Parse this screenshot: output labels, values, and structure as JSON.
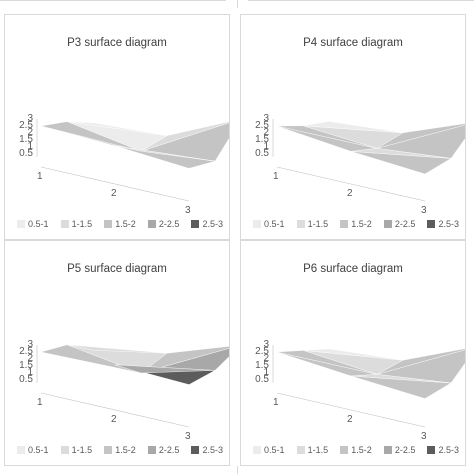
{
  "chart_data": [
    {
      "type": "surface",
      "title": "P3 surface diagram",
      "y_ticks": [
        "0.5",
        "1",
        "1.5",
        "2",
        "2.5",
        "3"
      ],
      "x_ticks": [
        "1",
        "2",
        "3"
      ],
      "legend": [
        "0.5-1",
        "1-1.5",
        "1.5-2",
        "2-2.5",
        "2.5-3"
      ],
      "legend_colors": [
        "#ececec",
        "#dcdcdc",
        "#c4c4c4",
        "#a8a8a8",
        "#5c5c5c"
      ],
      "grid": [
        [
          2.5,
          2.3,
          1.9
        ],
        [
          1.6,
          0.7,
          1.2
        ],
        [
          0.3,
          0.6,
          3.0
        ]
      ]
    },
    {
      "type": "surface",
      "title": "P4 surface diagram",
      "y_ticks": [
        "0.5",
        "1",
        "1.5",
        "2",
        "2.5",
        "3"
      ],
      "x_ticks": [
        "1",
        "2",
        "3"
      ],
      "legend": [
        "0.5-1",
        "1-1.5",
        "1.5-2",
        "2-2.5",
        "2.5-3"
      ],
      "legend_colors": [
        "#ececec",
        "#dcdcdc",
        "#c4c4c4",
        "#a8a8a8",
        "#5c5c5c"
      ],
      "grid": [
        [
          2.5,
          1.9,
          1.5
        ],
        [
          1.3,
          0.9,
          1.4
        ],
        [
          0.4,
          0.8,
          2.8
        ]
      ]
    },
    {
      "type": "surface",
      "title": "P5 surface diagram",
      "y_ticks": [
        "0.5",
        "1",
        "1.5",
        "2",
        "2.5",
        "3"
      ],
      "x_ticks": [
        "1",
        "2",
        "3"
      ],
      "legend": [
        "0.5-1",
        "1-1.5",
        "1.5-2",
        "2-2.5",
        "2.5-3"
      ],
      "legend_colors": [
        "#ececec",
        "#dcdcdc",
        "#c4c4c4",
        "#a8a8a8",
        "#5c5c5c"
      ],
      "grid": [
        [
          2.5,
          2.8,
          2.6
        ],
        [
          1.8,
          1.0,
          2.4
        ],
        [
          0.2,
          1.2,
          3.0
        ]
      ]
    },
    {
      "type": "surface",
      "title": "P6 surface diagram",
      "y_ticks": [
        "0.5",
        "1",
        "1.5",
        "2",
        "2.5",
        "3"
      ],
      "x_ticks": [
        "1",
        "2",
        "3"
      ],
      "legend": [
        "0.5-1",
        "1-1.5",
        "1.5-2",
        "2-2.5",
        "2.5-3"
      ],
      "legend_colors": [
        "#ececec",
        "#dcdcdc",
        "#c4c4c4",
        "#a8a8a8",
        "#5c5c5c"
      ],
      "grid": [
        [
          2.5,
          2.0,
          1.6
        ],
        [
          1.4,
          0.9,
          1.5
        ],
        [
          0.3,
          0.7,
          2.9
        ]
      ]
    }
  ]
}
